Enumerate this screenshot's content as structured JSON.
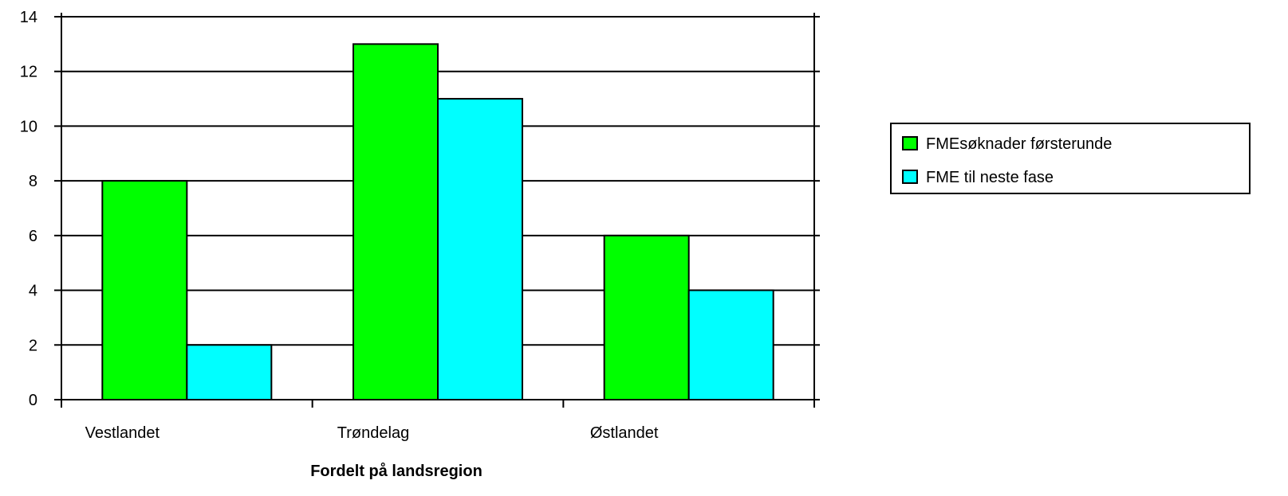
{
  "chart_data": {
    "type": "bar",
    "categories": [
      "Vestlandet",
      "Trøndelag",
      "Østlandet"
    ],
    "series": [
      {
        "name": "FMEsøknader førsterunde",
        "values": [
          8,
          13,
          6
        ],
        "color": "#00ff00"
      },
      {
        "name": "FME til neste fase",
        "values": [
          2,
          11,
          4
        ],
        "color": "#00ffff"
      }
    ],
    "title": "",
    "xlabel": "Fordelt på landsregion",
    "ylabel": "",
    "ylim": [
      0,
      14
    ],
    "yticks": [
      "0",
      "2",
      "4",
      "6",
      "8",
      "10",
      "12",
      "14"
    ],
    "grid": true,
    "legend_position": "right"
  }
}
